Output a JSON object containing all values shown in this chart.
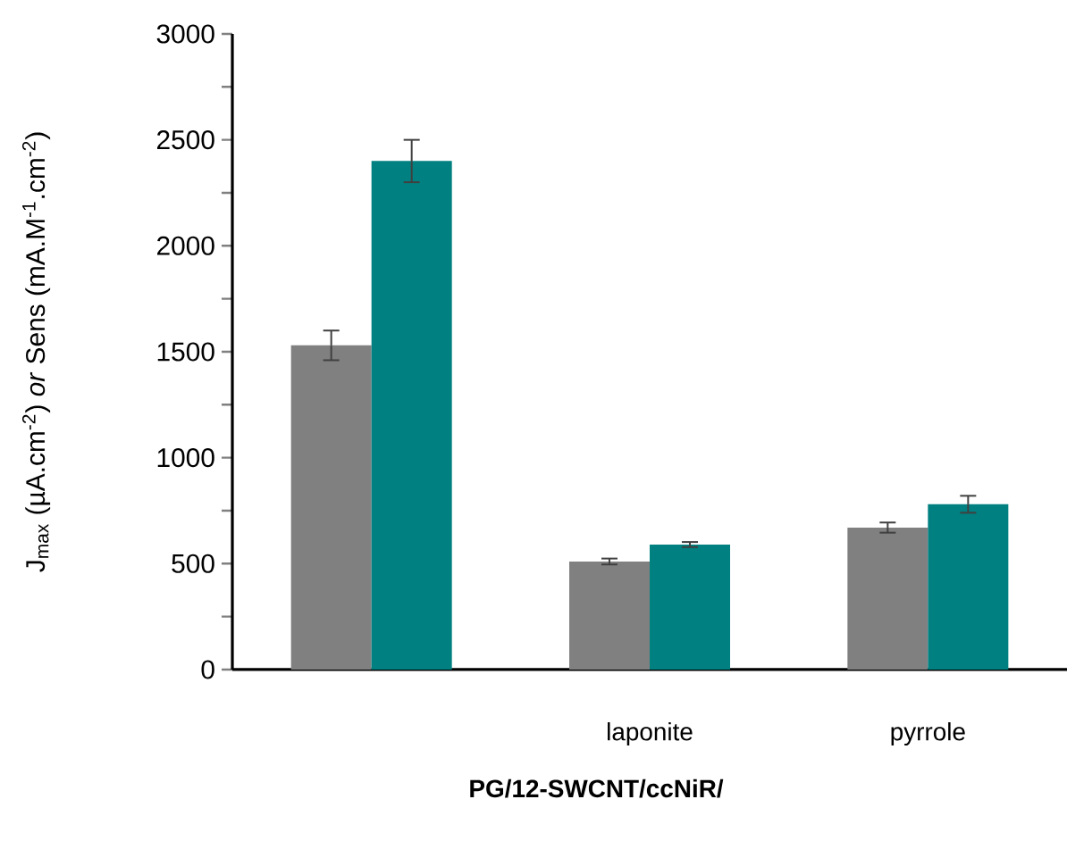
{
  "chart_data": {
    "type": "bar",
    "xlabel": "**PG/12-SWCNT/ccNiR/**",
    "ylabel": "J$_{max}$ (µA.cm$^{-2}$) *or* Sens (mA.M$^{-1}$.cm$^{-2}$)",
    "categories": [
      null,
      "laponite",
      "pyrrole"
    ],
    "series": [
      {
        "color": "#808080",
        "values": [
          1530,
          510,
          670
        ],
        "errors": [
          70,
          14,
          24
        ]
      },
      {
        "color": "#008080",
        "values": [
          2400,
          590,
          780
        ],
        "errors": [
          100,
          12,
          40
        ]
      }
    ],
    "ylim": [
      0,
      3000
    ],
    "yticks": [
      0,
      {
        "value": 250,
        "label": null
      },
      500,
      {
        "value": 750,
        "label": null
      },
      1000,
      {
        "value": 1250,
        "label": null
      },
      1500,
      {
        "value": 1750,
        "label": null
      },
      2000,
      {
        "value": 2250,
        "label": null
      },
      2500,
      {
        "value": 2750,
        "label": null
      },
      3000
    ],
    "grid": false,
    "legend": false
  }
}
